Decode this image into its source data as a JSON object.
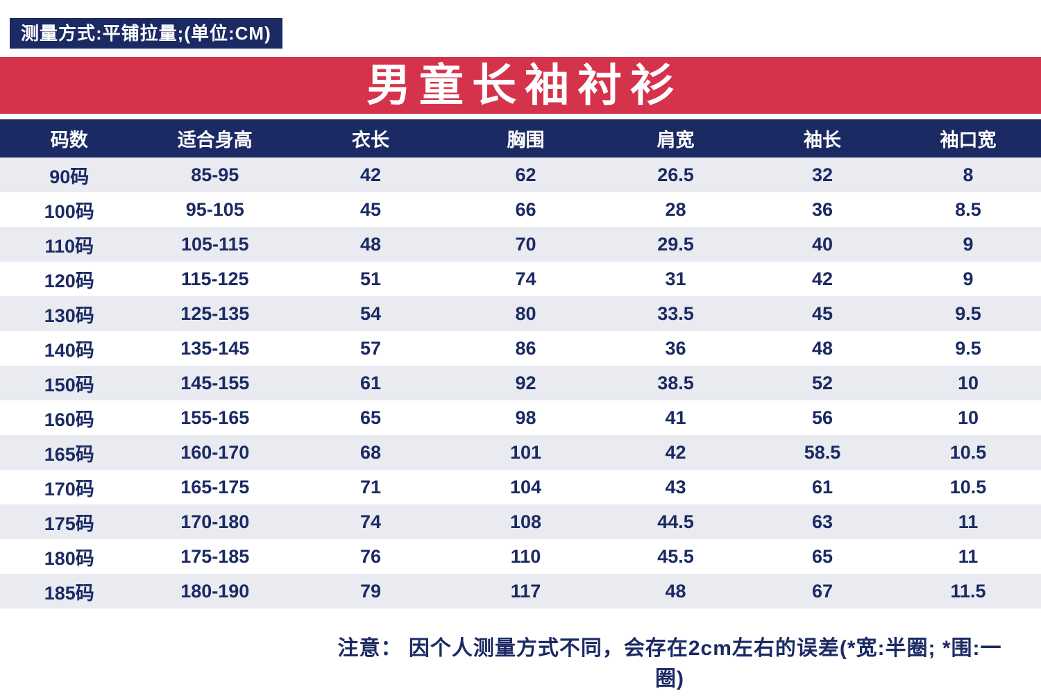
{
  "measurement_note": "测量方式:平铺拉量;(单位:CM)",
  "title": "男童长袖衬衫",
  "footer_note": "注意： 因个人测量方式不同，会存在2cm左右的误差(*宽:半圈; *围:一圈)",
  "colors": {
    "navy": "#1b2a63",
    "red": "#d5334b",
    "row_alt": "#e9ebf1",
    "white": "#ffffff"
  },
  "chart_data": {
    "type": "table",
    "title": "男童长袖衬衫",
    "columns": [
      "码数",
      "适合身高",
      "衣长",
      "胸围",
      "肩宽",
      "袖长",
      "袖口宽"
    ],
    "rows": [
      [
        "90码",
        "85-95",
        "42",
        "62",
        "26.5",
        "32",
        "8"
      ],
      [
        "100码",
        "95-105",
        "45",
        "66",
        "28",
        "36",
        "8.5"
      ],
      [
        "110码",
        "105-115",
        "48",
        "70",
        "29.5",
        "40",
        "9"
      ],
      [
        "120码",
        "115-125",
        "51",
        "74",
        "31",
        "42",
        "9"
      ],
      [
        "130码",
        "125-135",
        "54",
        "80",
        "33.5",
        "45",
        "9.5"
      ],
      [
        "140码",
        "135-145",
        "57",
        "86",
        "36",
        "48",
        "9.5"
      ],
      [
        "150码",
        "145-155",
        "61",
        "92",
        "38.5",
        "52",
        "10"
      ],
      [
        "160码",
        "155-165",
        "65",
        "98",
        "41",
        "56",
        "10"
      ],
      [
        "165码",
        "160-170",
        "68",
        "101",
        "42",
        "58.5",
        "10.5"
      ],
      [
        "170码",
        "165-175",
        "71",
        "104",
        "43",
        "61",
        "10.5"
      ],
      [
        "175码",
        "170-180",
        "74",
        "108",
        "44.5",
        "63",
        "11"
      ],
      [
        "180码",
        "175-185",
        "76",
        "110",
        "45.5",
        "65",
        "11"
      ],
      [
        "185码",
        "180-190",
        "79",
        "117",
        "48",
        "67",
        "11.5"
      ]
    ]
  }
}
